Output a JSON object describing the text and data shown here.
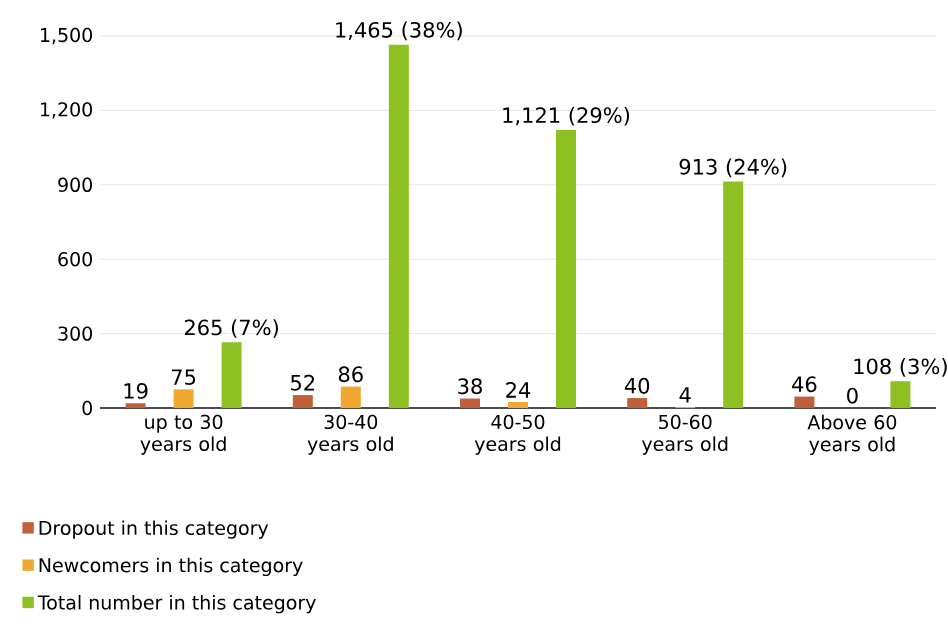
{
  "chart_data": {
    "type": "bar",
    "categories": [
      "up to 30 years old",
      "30-40 years old",
      "40-50 years old",
      "50-60 years old",
      "Above 60 years old"
    ],
    "series": [
      {
        "name": "Dropout in this category",
        "color": "#c0603a",
        "values": [
          19,
          52,
          38,
          40,
          46
        ],
        "value_labels": [
          "19",
          "52",
          "38",
          "40",
          "46"
        ]
      },
      {
        "name": "Newcomers in this category",
        "color": "#f0a830",
        "values": [
          75,
          86,
          24,
          4,
          0
        ],
        "value_labels": [
          "75",
          "86",
          "24",
          "4",
          "0"
        ]
      },
      {
        "name": "Total number in this category",
        "color": "#8dc021",
        "values": [
          265,
          1465,
          1121,
          913,
          108
        ],
        "value_labels": [
          "265 (7%)",
          "1,465 (38%)",
          "1,121 (29%)",
          "913 (24%)",
          "108 (3%)"
        ]
      }
    ],
    "ylim": [
      0,
      1500
    ],
    "yticks": [
      0,
      300,
      600,
      900,
      {
        "value": 1200,
        "label": "1,200"
      },
      {
        "value": 1500,
        "label": "1,500"
      }
    ],
    "grid": "y",
    "legend": "bottom"
  }
}
